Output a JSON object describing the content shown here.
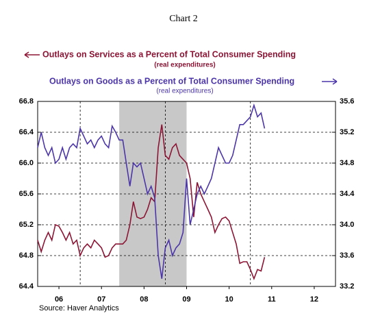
{
  "chart_data": {
    "type": "line",
    "title": "Chart 2",
    "source": "Source: Haver Analytics",
    "xlim": [
      2006,
      2013
    ],
    "xticks": [
      {
        "value": 2006.5,
        "label": "06"
      },
      {
        "value": 2007.5,
        "label": "07"
      },
      {
        "value": 2008.5,
        "label": "08"
      },
      {
        "value": 2009.5,
        "label": "09"
      },
      {
        "value": 2010.5,
        "label": "10"
      },
      {
        "value": 2011.5,
        "label": "11"
      },
      {
        "value": 2012.5,
        "label": "12"
      }
    ],
    "xgrid": [
      2007,
      2009,
      2011
    ],
    "shaded_range": [
      2007.917,
      2009.5
    ],
    "ylim": [
      64.4,
      66.8
    ],
    "yticks": [
      64.4,
      64.8,
      65.2,
      65.6,
      66.0,
      66.4,
      66.8
    ],
    "y2lim": [
      33.2,
      35.6
    ],
    "y2ticks": [
      33.2,
      33.6,
      34.0,
      34.4,
      34.8,
      35.2,
      35.6
    ],
    "grid": true,
    "x": [
      2006,
      2006.083,
      2006.167,
      2006.25,
      2006.333,
      2006.417,
      2006.5,
      2006.583,
      2006.667,
      2006.75,
      2006.833,
      2006.917,
      2007,
      2007.083,
      2007.167,
      2007.25,
      2007.333,
      2007.417,
      2007.5,
      2007.583,
      2007.667,
      2007.75,
      2007.833,
      2007.917,
      2008,
      2008.083,
      2008.167,
      2008.25,
      2008.333,
      2008.417,
      2008.5,
      2008.583,
      2008.667,
      2008.75,
      2008.833,
      2008.917,
      2009,
      2009.083,
      2009.167,
      2009.25,
      2009.333,
      2009.417,
      2009.5,
      2009.583,
      2009.667,
      2009.75,
      2009.833,
      2009.917,
      2010,
      2010.083,
      2010.167,
      2010.25,
      2010.333,
      2010.417,
      2010.5,
      2010.583,
      2010.667,
      2010.75,
      2010.833,
      2010.917,
      2011,
      2011.083,
      2011.167,
      2011.25,
      2011.333
    ],
    "series": [
      {
        "name": "Outlays on Services as a Percent of Total Consumer Spending",
        "subtitle": "(real expenditures)",
        "color": "#8c1434",
        "axis": "y",
        "values": [
          65.0,
          64.85,
          65.0,
          65.1,
          65.0,
          65.2,
          65.18,
          65.1,
          65.0,
          65.1,
          64.95,
          65.0,
          64.8,
          64.9,
          64.95,
          64.9,
          65.0,
          64.95,
          64.9,
          64.78,
          64.8,
          64.9,
          64.95,
          64.95,
          64.95,
          65.0,
          65.2,
          65.5,
          65.3,
          65.28,
          65.3,
          65.4,
          65.55,
          65.5,
          66.2,
          66.5,
          66.1,
          66.05,
          66.2,
          66.25,
          66.1,
          66.05,
          66.0,
          65.8,
          65.3,
          65.75,
          65.6,
          65.5,
          65.4,
          65.3,
          65.1,
          65.2,
          65.28,
          65.3,
          65.25,
          65.1,
          64.95,
          64.7,
          64.72,
          64.72,
          64.62,
          64.5,
          64.62,
          64.6,
          64.78
        ]
      },
      {
        "name": "Outlays on Goods as a Percent of Total Consumer Spending",
        "subtitle": "(real expenditures)",
        "color": "#4b35a8",
        "axis": "y2",
        "values": [
          35.0,
          35.2,
          35.0,
          34.9,
          35.0,
          34.8,
          34.85,
          35.0,
          34.85,
          35.0,
          35.05,
          35.0,
          35.25,
          35.15,
          35.05,
          35.1,
          35.0,
          35.1,
          35.15,
          35.05,
          35.0,
          35.28,
          35.2,
          35.1,
          35.1,
          34.8,
          34.5,
          34.8,
          34.75,
          34.8,
          34.6,
          34.4,
          34.5,
          34.35,
          33.6,
          33.3,
          33.7,
          33.8,
          33.6,
          33.7,
          33.75,
          33.9,
          34.6,
          34.0,
          34.2,
          34.4,
          34.5,
          34.4,
          34.5,
          34.6,
          34.8,
          35.0,
          34.9,
          34.8,
          34.8,
          34.9,
          35.1,
          35.3,
          35.3,
          35.35,
          35.4,
          35.55,
          35.4,
          35.45,
          35.25
        ]
      }
    ]
  }
}
